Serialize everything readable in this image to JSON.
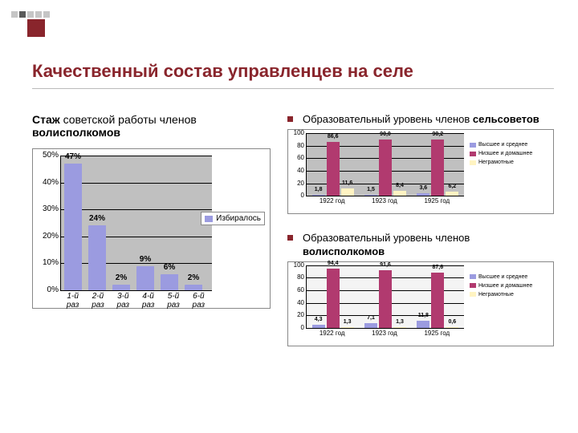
{
  "title": "Качественный состав управленцев на селе",
  "decorator": {
    "square_color": "#89252c",
    "dot_color": "#5a5a5a"
  },
  "left": {
    "title_line1_span1": "Стаж",
    "title_line1_span2": " советской работы членов",
    "title_line2": "волисполкомов",
    "chart": {
      "type": "bar",
      "ylim": [
        0,
        50
      ],
      "ytick_step": 10,
      "ytick_suffix": "%",
      "bar_color": "#9b9be0",
      "plot_bg": "#c0c0c0",
      "grid_color": "#000000",
      "categories": [
        "1-й\nраз",
        "2-й\nраз",
        "3-й\nраз",
        "4-й\nраз",
        "5-й\nраз",
        "6-й\nраз"
      ],
      "values": [
        47,
        24,
        2,
        9,
        6,
        2
      ],
      "value_suffix": "%",
      "legend_label": "Избиралось"
    }
  },
  "right": {
    "items": [
      {
        "title_html": "Образовательный уровень членов <b>сельсоветов</b>",
        "chart": {
          "type": "grouped-bar",
          "ylim": [
            0,
            100
          ],
          "ytick_step": 20,
          "plot_bg": "#c0c0c0",
          "categories": [
            "1922 год",
            "1923 год",
            "1925 год"
          ],
          "series": [
            {
              "label": "Высшее и среднее",
              "color": "#9b9be0",
              "values": [
                1.8,
                1.5,
                3.6
              ]
            },
            {
              "label": "Низшее и домашнее",
              "color": "#b13a6f",
              "values": [
                86.6,
                90.0,
                90.2
              ]
            },
            {
              "label": "Неграмотные",
              "color": "#fff4c2",
              "values": [
                11.6,
                8.4,
                6.2
              ]
            }
          ]
        }
      },
      {
        "title_html": "Образовательный уровень членов <b>волисполкомов</b>",
        "chart": {
          "type": "grouped-bar",
          "ylim": [
            0,
            100
          ],
          "ytick_step": 20,
          "plot_bg": "#f4f4f4",
          "categories": [
            "1922 год",
            "1923 год",
            "1925 год"
          ],
          "series": [
            {
              "label": "Высшее и среднее",
              "color": "#9b9be0",
              "values": [
                4.3,
                7.1,
                11.8
              ]
            },
            {
              "label": "Низшее и домашнее",
              "color": "#b13a6f",
              "values": [
                94.4,
                91.6,
                87.6
              ]
            },
            {
              "label": "Неграмотные",
              "color": "#fff4c2",
              "values": [
                1.3,
                1.3,
                0.6
              ]
            }
          ]
        }
      }
    ]
  }
}
